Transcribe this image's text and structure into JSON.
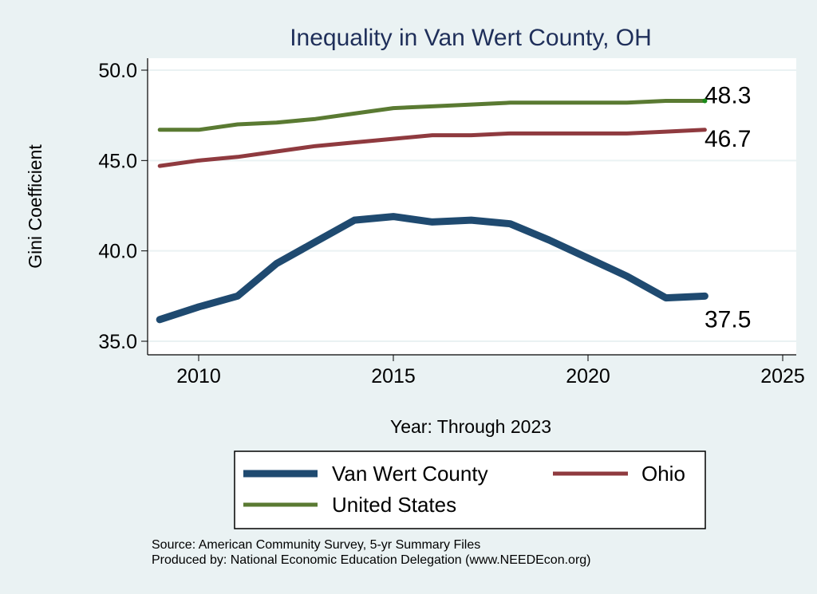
{
  "chart_data": {
    "type": "line",
    "title": "Inequality in Van Wert County, OH",
    "xlabel": "Year: Through 2023",
    "ylabel": "Gini Coefficient",
    "xlim": [
      2008.7,
      2025.3
    ],
    "ylim": [
      34.2,
      50.7
    ],
    "xticks": [
      2010,
      2015,
      2020,
      2025
    ],
    "xtick_labels": [
      "2010",
      "2015",
      "2020",
      "2025"
    ],
    "yticks": [
      35,
      40,
      45,
      50
    ],
    "ytick_labels": [
      "35.0",
      "40.0",
      "45.0",
      "50.0"
    ],
    "grid": true,
    "legend_placement": "bottom",
    "x": [
      2009,
      2010,
      2011,
      2012,
      2013,
      2014,
      2015,
      2016,
      2017,
      2018,
      2019,
      2020,
      2021,
      2022,
      2023
    ],
    "series": [
      {
        "name": "Van Wert County",
        "color": "#1f4a70",
        "values": [
          36.2,
          36.9,
          37.5,
          39.3,
          40.5,
          41.7,
          41.9,
          41.6,
          41.7,
          41.5,
          40.6,
          39.6,
          38.6,
          37.4,
          37.5
        ],
        "end_label": "37.5"
      },
      {
        "name": "Ohio",
        "color": "#8f3a3f",
        "values": [
          44.7,
          45.0,
          45.2,
          45.5,
          45.8,
          46.0,
          46.2,
          46.4,
          46.4,
          46.5,
          46.5,
          46.5,
          46.5,
          46.6,
          46.7
        ],
        "end_label": "46.7"
      },
      {
        "name": "United States",
        "color": "#5a7a32",
        "values": [
          46.7,
          46.7,
          47.0,
          47.1,
          47.3,
          47.6,
          47.9,
          48.0,
          48.1,
          48.2,
          48.2,
          48.2,
          48.2,
          48.3,
          48.3
        ],
        "end_label": "48.3"
      }
    ],
    "source_lines": [
      "Source: American Community Survey, 5-yr Summary Files",
      "Produced by: National Economic Education Delegation (www.NEEDEcon.org)"
    ]
  }
}
